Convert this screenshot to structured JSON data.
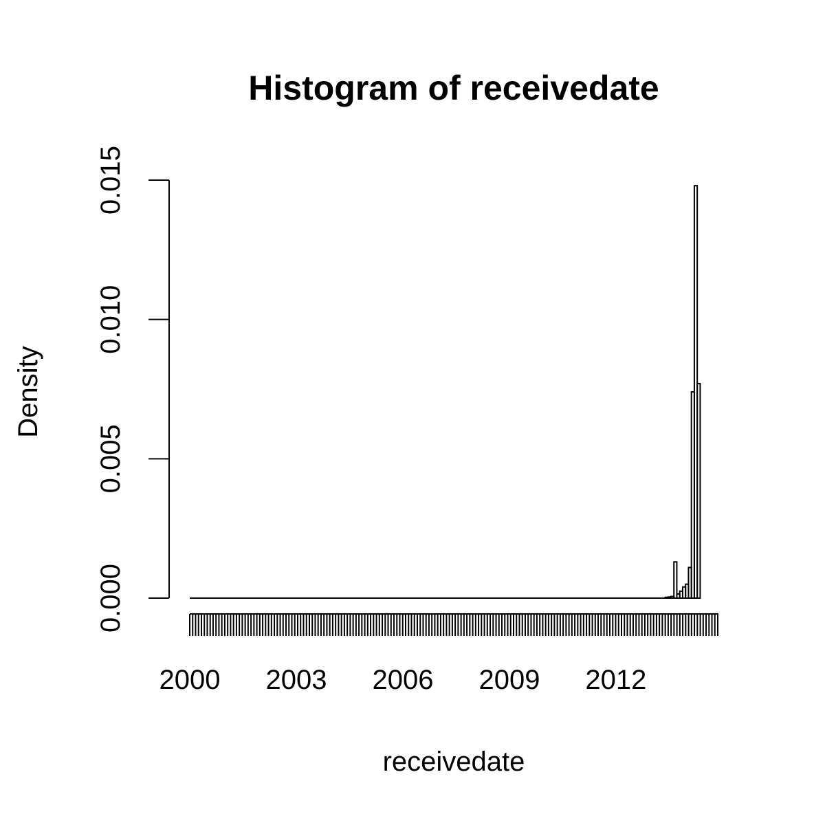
{
  "chart_data": {
    "type": "bar",
    "title": "Histogram of receivedate",
    "xlabel": "receivedate",
    "ylabel": "Density",
    "x_range": [
      "2000-01-01",
      "2014-11-20"
    ],
    "xlim": [
      "2000-01-01",
      "2014-11-20"
    ],
    "ylim": [
      0,
      0.015
    ],
    "x_ticks": [
      {
        "date": "2000-01-01",
        "label": "2000"
      },
      {
        "date": "2003-01-01",
        "label": "2003"
      },
      {
        "date": "2006-01-01",
        "label": "2006"
      },
      {
        "date": "2009-01-01",
        "label": "2009"
      },
      {
        "date": "2012-01-01",
        "label": "2012"
      }
    ],
    "y_ticks": [
      "0.000",
      "0.005",
      "0.010",
      "0.015"
    ],
    "y_tick_values": [
      0,
      0.005,
      0.01,
      0.015
    ],
    "bins": [
      {
        "start": "2013-05-21",
        "end": "2013-06-20",
        "density": 3e-05
      },
      {
        "start": "2013-06-20",
        "end": "2013-07-20",
        "density": 4e-05
      },
      {
        "start": "2013-07-20",
        "end": "2013-08-19",
        "density": 6e-05
      },
      {
        "start": "2013-08-19",
        "end": "2013-09-18",
        "density": 0.0013
      },
      {
        "start": "2013-09-18",
        "end": "2013-10-18",
        "density": 0.00015
      },
      {
        "start": "2013-10-18",
        "end": "2013-11-17",
        "density": 0.00025
      },
      {
        "start": "2013-11-17",
        "end": "2013-12-17",
        "density": 0.0004
      },
      {
        "start": "2013-12-17",
        "end": "2014-01-16",
        "density": 0.0005
      },
      {
        "start": "2014-01-16",
        "end": "2014-02-15",
        "density": 0.0011
      },
      {
        "start": "2014-02-15",
        "end": "2014-03-17",
        "density": 0.0074
      },
      {
        "start": "2014-03-17",
        "end": "2014-04-16",
        "density": 0.0148
      },
      {
        "start": "2014-04-16",
        "end": "2014-05-16",
        "density": 0.0077
      }
    ],
    "rug": true,
    "grid": false,
    "legend": "none"
  }
}
